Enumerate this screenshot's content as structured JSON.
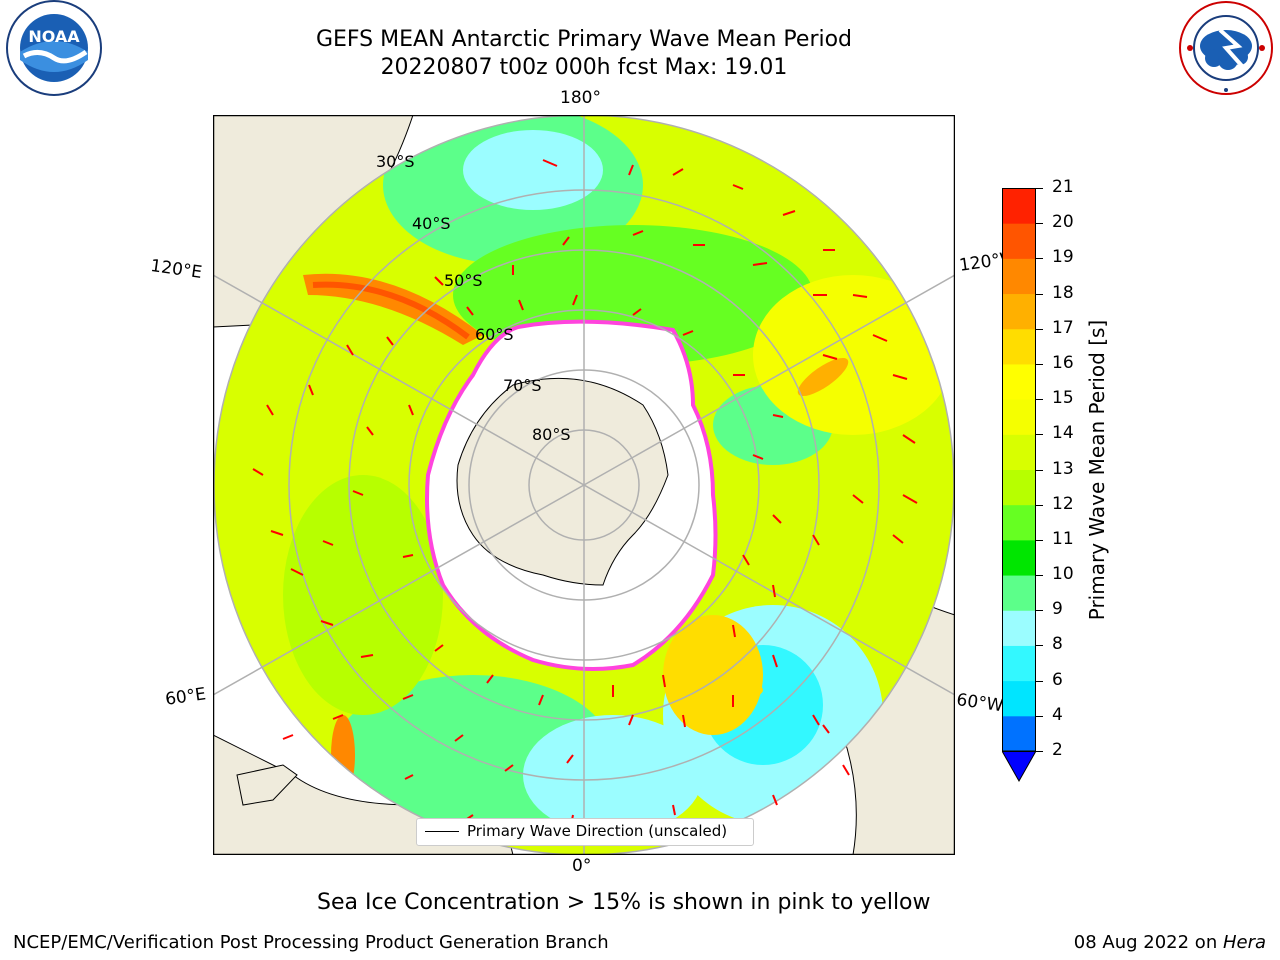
{
  "header": {
    "title_line1": "GEFS MEAN Antarctic Primary Wave Mean Period",
    "title_line2": "20220807 t00z 000h fcst   Max: 19.01"
  },
  "logos": {
    "noaa": {
      "text": "NOAA",
      "icon": "noaa-logo-icon"
    },
    "nws": {
      "icon": "national-weather-service-logo-icon"
    }
  },
  "map": {
    "projection": "south-polar-stereographic",
    "longitude_labels": {
      "top": "180°",
      "bottom": "0°",
      "upper_left": "120°E",
      "upper_right": "120°W",
      "lower_left": "60°E",
      "lower_right": "60°W"
    },
    "latitude_labels": [
      "30°S",
      "40°S",
      "50°S",
      "60°S",
      "70°S",
      "80°S"
    ],
    "legend_label": "Primary Wave Direction (unscaled)",
    "colors": {
      "land": "#efebdc",
      "ice_edge": "#ff44dd",
      "arrow": "#ff0000",
      "grid": "#b0b0b0"
    }
  },
  "colorbar": {
    "label": "Primary Wave Mean Period [s]",
    "ticks": [
      "2",
      "4",
      "6",
      "8",
      "9",
      "10",
      "11",
      "12",
      "13",
      "14",
      "15",
      "16",
      "17",
      "18",
      "19",
      "20",
      "21"
    ],
    "colors": [
      "#0072ff",
      "#00e5ff",
      "#33f8ff",
      "#9bfdff",
      "#5cff8a",
      "#00e600",
      "#66ff22",
      "#b7ff00",
      "#d8ff00",
      "#f5ff00",
      "#ffff00",
      "#ffdd00",
      "#ffb000",
      "#ff8800",
      "#ff5500",
      "#ff2200"
    ],
    "extend_color": "#0000ff"
  },
  "notes": {
    "sea_ice": "Sea Ice Concentration > 15% is shown in pink to yellow"
  },
  "footer": {
    "left": "NCEP/EMC/Verification Post Processing Product Generation Branch",
    "right_prefix": "08 Aug 2022 on ",
    "right_machine": "Hera"
  }
}
